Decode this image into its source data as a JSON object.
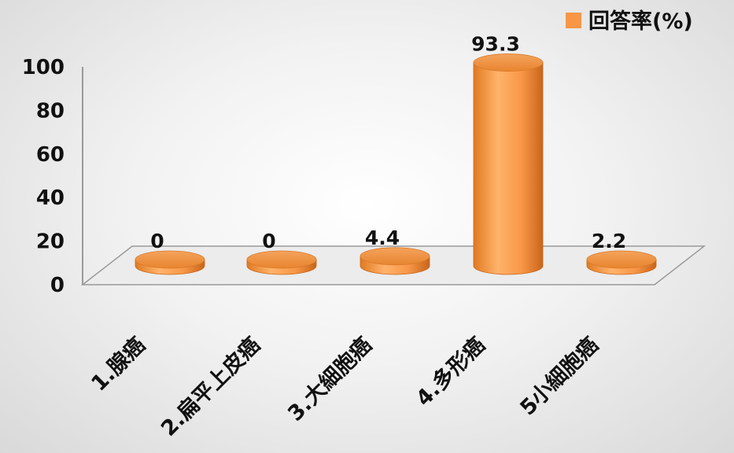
{
  "chart_data": {
    "type": "bar",
    "style": "3d-cylinder",
    "categories": [
      "1.腺癌",
      "2.扁平上皮癌",
      "3.大細胞癌",
      "4.多形癌",
      "5小細胞癌"
    ],
    "series": [
      {
        "name": "回答率(%)",
        "values": [
          0,
          0,
          4.4,
          93.3,
          2.2
        ],
        "color": "#f79646"
      }
    ],
    "data_labels": [
      "0",
      "0",
      "4.4",
      "93.3",
      "2.2"
    ],
    "yticks": [
      "0",
      "20",
      "40",
      "60",
      "80",
      "100"
    ],
    "ylim": [
      0,
      100
    ],
    "legend": {
      "position": "top-right",
      "label": "回答率(%)"
    },
    "grid": false
  }
}
